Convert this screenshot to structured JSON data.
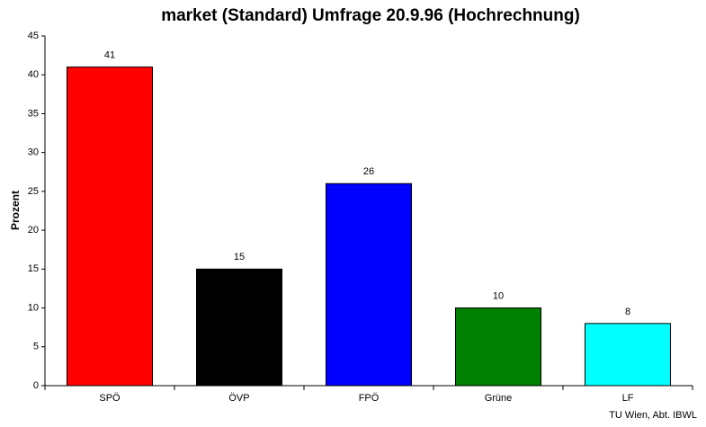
{
  "chart_data": {
    "type": "bar",
    "title": "market (Standard) Umfrage 20.9.96 (Hochrechnung)",
    "y_label": "Prozent",
    "note": "TU Wien, Abt. IBWL",
    "categories": [
      "SPÖ",
      "ÖVP",
      "FPÖ",
      "Grüne",
      "LF"
    ],
    "values": [
      41,
      15,
      26,
      10,
      8
    ],
    "colors": [
      "#ff0000",
      "#000000",
      "#0000ff",
      "#008000",
      "#00ffff"
    ],
    "ylim": [
      0,
      45
    ],
    "yticks": [
      0,
      5,
      10,
      15,
      20,
      25,
      30,
      35,
      40,
      45
    ],
    "grid": false
  }
}
